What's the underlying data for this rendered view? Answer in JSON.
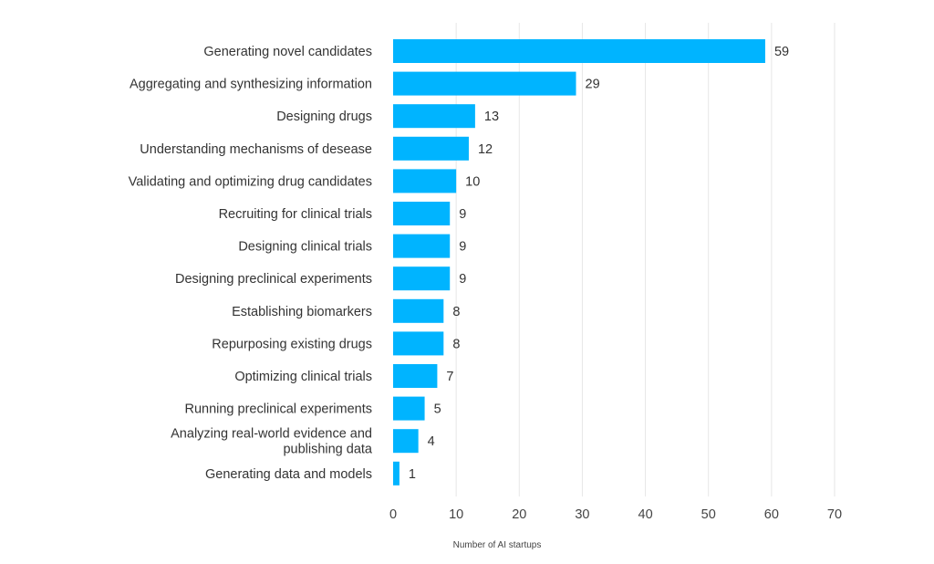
{
  "chart_data": {
    "type": "bar",
    "orientation": "horizontal",
    "categories": [
      "Generating novel candidates",
      "Aggregating and synthesizing information",
      "Designing drugs",
      "Understanding mechanisms of desease",
      "Validating and optimizing drug candidates",
      "Recruiting for clinical trials",
      "Designing clinical trials",
      "Designing preclinical experiments",
      "Establishing biomarkers",
      "Repurposing existing drugs",
      "Optimizing clinical trials",
      "Running preclinical experiments",
      "Analyzing real-world evidence and publishing data",
      "Generating data and models"
    ],
    "category_lines": [
      [
        "Generating novel candidates"
      ],
      [
        "Aggregating and synthesizing information"
      ],
      [
        "Designing drugs"
      ],
      [
        "Understanding mechanisms of desease"
      ],
      [
        "Validating and optimizing drug candidates"
      ],
      [
        "Recruiting for clinical trials"
      ],
      [
        "Designing clinical trials"
      ],
      [
        "Designing preclinical experiments"
      ],
      [
        "Establishing biomarkers"
      ],
      [
        "Repurposing existing drugs"
      ],
      [
        "Optimizing clinical trials"
      ],
      [
        "Running preclinical experiments"
      ],
      [
        "Analyzing real-world evidence and",
        "publishing data"
      ],
      [
        "Generating data and models"
      ]
    ],
    "values": [
      59,
      29,
      13,
      12,
      10,
      9,
      9,
      9,
      8,
      8,
      7,
      5,
      4,
      1
    ],
    "title": "",
    "xlabel": "Number of AI startups",
    "ylabel": "",
    "xlim": [
      0,
      70
    ],
    "xticks": [
      0,
      10,
      20,
      30,
      40,
      50,
      60,
      70
    ],
    "grid": "vertical",
    "legend": "none",
    "bar_color": "#00b4ff",
    "gridline_color": "#e6e6e6"
  }
}
